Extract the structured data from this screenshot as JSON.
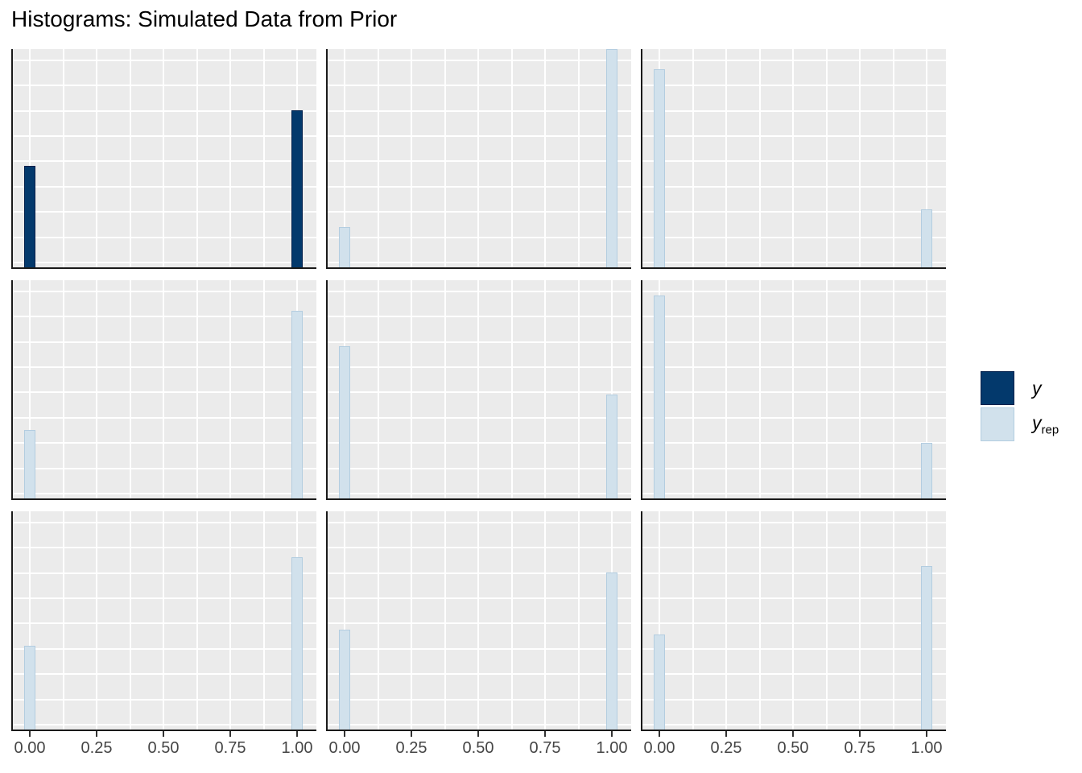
{
  "title": "Histograms: Simulated Data from Prior",
  "colors": {
    "y_fill": "#03396c",
    "y_border": "#011f4b",
    "yrep_fill": "#d1e1ec",
    "yrep_border": "#b3cde0",
    "panel_bg": "#ebebeb",
    "grid": "#ffffff",
    "axis": "#1a1a1a",
    "tick_text": "#454545"
  },
  "legend": {
    "items": [
      {
        "label": "y",
        "subscript": "",
        "series": "y"
      },
      {
        "label": "y",
        "subscript": "rep",
        "series": "y_rep"
      }
    ]
  },
  "chart_data": {
    "type": "bar",
    "subtype": "histogram-facet-grid",
    "title": "Histograms: Simulated Data from Prior",
    "facets": {
      "rows": 3,
      "cols": 3
    },
    "xlabel": "",
    "ylabel": "",
    "x_tick_labels": [
      "0.00",
      "0.25",
      "0.50",
      "0.75",
      "1.00"
    ],
    "x_tick_values": [
      0,
      0.25,
      0.5,
      0.75,
      1
    ],
    "x_range_px_maps_01": true,
    "bins": [
      0,
      1
    ],
    "y_axis_labels_shown": false,
    "y_unit": "relative bar height, fraction of tallest bar (no y-axis labels in plot)",
    "grid": {
      "x_gridline_step": 0.125,
      "h_gridline_count": 9
    },
    "legend_position": "right",
    "panels": [
      {
        "series": "y",
        "bin_x": [
          0,
          1
        ],
        "bar_heights_rel": [
          0.47,
          0.72
        ]
      },
      {
        "series": "y_rep",
        "bin_x": [
          0,
          1
        ],
        "bar_heights_rel": [
          0.19,
          1.0
        ]
      },
      {
        "series": "y_rep",
        "bin_x": [
          0,
          1
        ],
        "bar_heights_rel": [
          0.91,
          0.27
        ]
      },
      {
        "series": "y_rep",
        "bin_x": [
          0,
          1
        ],
        "bar_heights_rel": [
          0.32,
          0.86
        ]
      },
      {
        "series": "y_rep",
        "bin_x": [
          0,
          1
        ],
        "bar_heights_rel": [
          0.7,
          0.48
        ]
      },
      {
        "series": "y_rep",
        "bin_x": [
          0,
          1
        ],
        "bar_heights_rel": [
          0.93,
          0.26
        ]
      },
      {
        "series": "y_rep",
        "bin_x": [
          0,
          1
        ],
        "bar_heights_rel": [
          0.39,
          0.79
        ]
      },
      {
        "series": "y_rep",
        "bin_x": [
          0,
          1
        ],
        "bar_heights_rel": [
          0.46,
          0.72
        ]
      },
      {
        "series": "y_rep",
        "bin_x": [
          0,
          1
        ],
        "bar_heights_rel": [
          0.44,
          0.75
        ]
      }
    ]
  }
}
